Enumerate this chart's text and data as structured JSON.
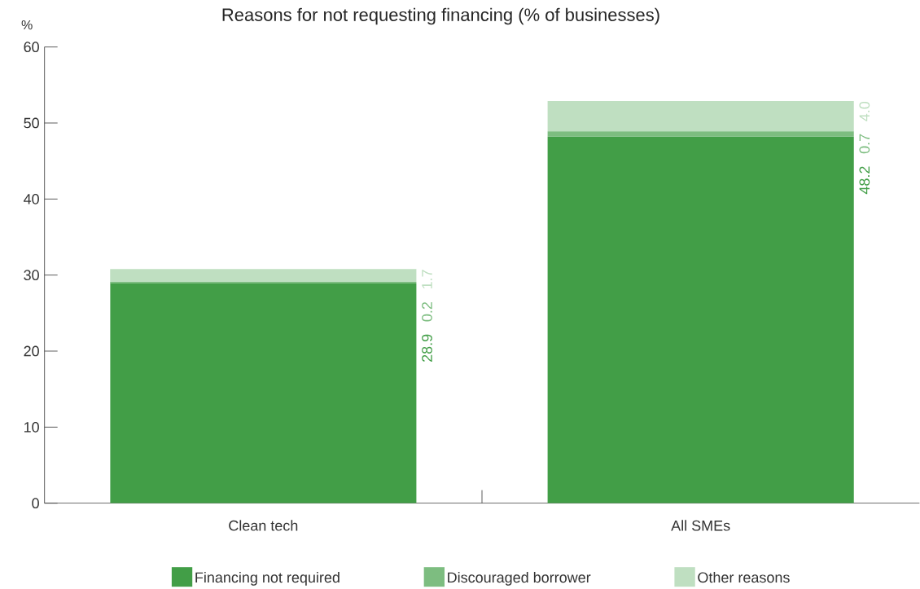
{
  "chart_data": {
    "type": "bar",
    "title": "Reasons for not requesting financing (% of businesses)",
    "ylabel": "%",
    "categories": [
      "Clean tech",
      "All SMEs"
    ],
    "series": [
      {
        "name": "Financing not required",
        "color": "#429e47",
        "values": [
          28.9,
          48.2
        ],
        "value_labels": [
          "28.9",
          "48.2"
        ]
      },
      {
        "name": "Discouraged borrower",
        "color": "#7dbd80",
        "values": [
          0.2,
          0.7
        ],
        "value_labels": [
          "0.2",
          "0.7"
        ]
      },
      {
        "name": "Other reasons",
        "color": "#bfdfc1",
        "values": [
          1.7,
          4.0
        ],
        "value_labels": [
          "1.7",
          "4.0"
        ]
      }
    ],
    "stacked": true,
    "ylim": [
      0,
      60
    ],
    "yticks": [
      0,
      10,
      20,
      30,
      40,
      50,
      60
    ],
    "grid": false,
    "legend": "bottom"
  }
}
